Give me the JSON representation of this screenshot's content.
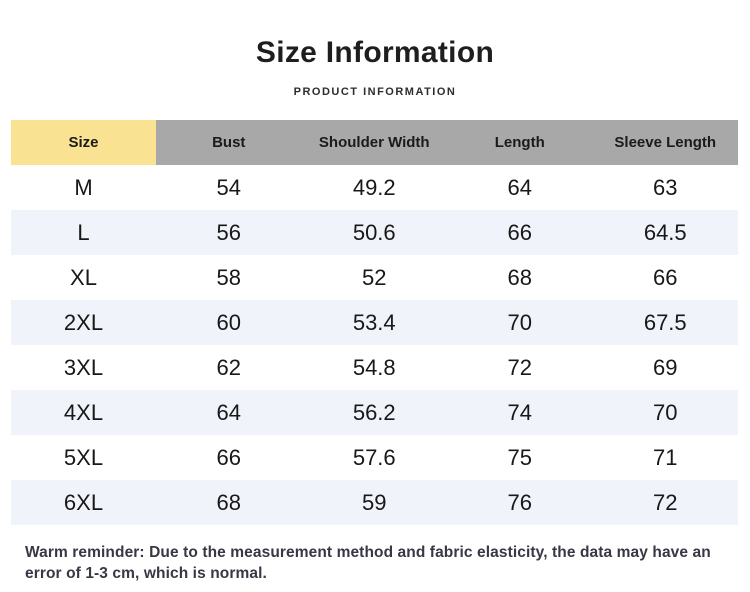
{
  "page": {
    "title": "Size Information",
    "subtitle": "PRODUCT INFORMATION",
    "note": "Warm reminder: Due to the measurement method and fabric elasticity, the data may have an error of 1-3 cm, which is normal."
  },
  "table": {
    "columns": [
      "Size",
      "Bust",
      "Shoulder Width",
      "Length",
      "Sleeve Length"
    ],
    "rows": [
      {
        "size": "M",
        "bust": "54",
        "shoulder_width": "49.2",
        "length": "64",
        "sleeve_length": "63"
      },
      {
        "size": "L",
        "bust": "56",
        "shoulder_width": "50.6",
        "length": "66",
        "sleeve_length": "64.5"
      },
      {
        "size": "XL",
        "bust": "58",
        "shoulder_width": "52",
        "length": "68",
        "sleeve_length": "66"
      },
      {
        "size": "2XL",
        "bust": "60",
        "shoulder_width": "53.4",
        "length": "70",
        "sleeve_length": "67.5"
      },
      {
        "size": "3XL",
        "bust": "62",
        "shoulder_width": "54.8",
        "length": "72",
        "sleeve_length": "69"
      },
      {
        "size": "4XL",
        "bust": "64",
        "shoulder_width": "56.2",
        "length": "74",
        "sleeve_length": "70"
      },
      {
        "size": "5XL",
        "bust": "66",
        "shoulder_width": "57.6",
        "length": "75",
        "sleeve_length": "71"
      },
      {
        "size": "6XL",
        "bust": "68",
        "shoulder_width": "59",
        "length": "76",
        "sleeve_length": "72"
      }
    ]
  },
  "colors": {
    "size_header_bg": "#F9E392",
    "header_bg": "#A8A8A9",
    "stripe_bg": "#F0F3FA",
    "note_text": "#3B3644"
  }
}
